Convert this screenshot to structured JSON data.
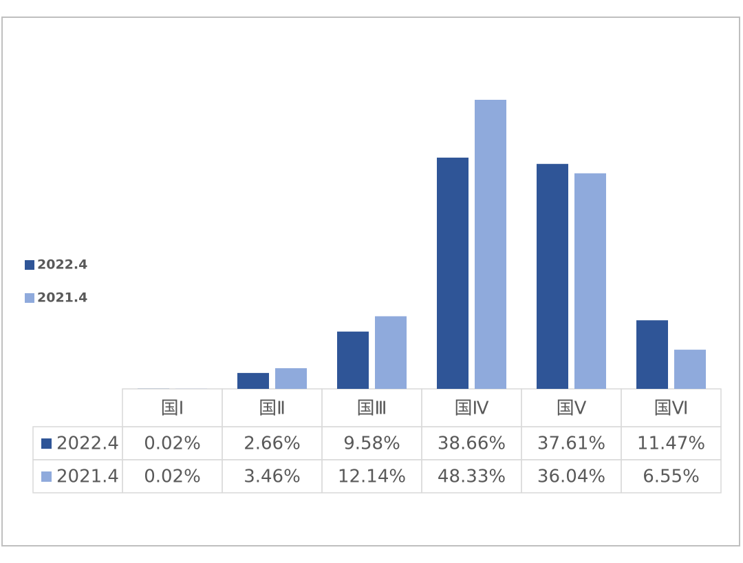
{
  "chart_data": {
    "type": "bar",
    "categories": [
      "国Ⅰ",
      "国Ⅱ",
      "国Ⅲ",
      "国Ⅳ",
      "国Ⅴ",
      "国Ⅵ"
    ],
    "series": [
      {
        "name": "2022.4",
        "color": "#2f5597",
        "values": [
          0.02,
          2.66,
          9.58,
          38.66,
          37.61,
          11.47
        ],
        "value_labels": [
          "0.02%",
          "2.66%",
          "9.58%",
          "38.66%",
          "37.61%",
          "11.47%"
        ]
      },
      {
        "name": "2021.4",
        "color": "#8faadc",
        "values": [
          0.02,
          3.46,
          12.14,
          48.33,
          36.04,
          6.55
        ],
        "value_labels": [
          "0.02%",
          "3.46%",
          "12.14%",
          "48.33%",
          "36.04%",
          "6.55%"
        ]
      }
    ]
  }
}
